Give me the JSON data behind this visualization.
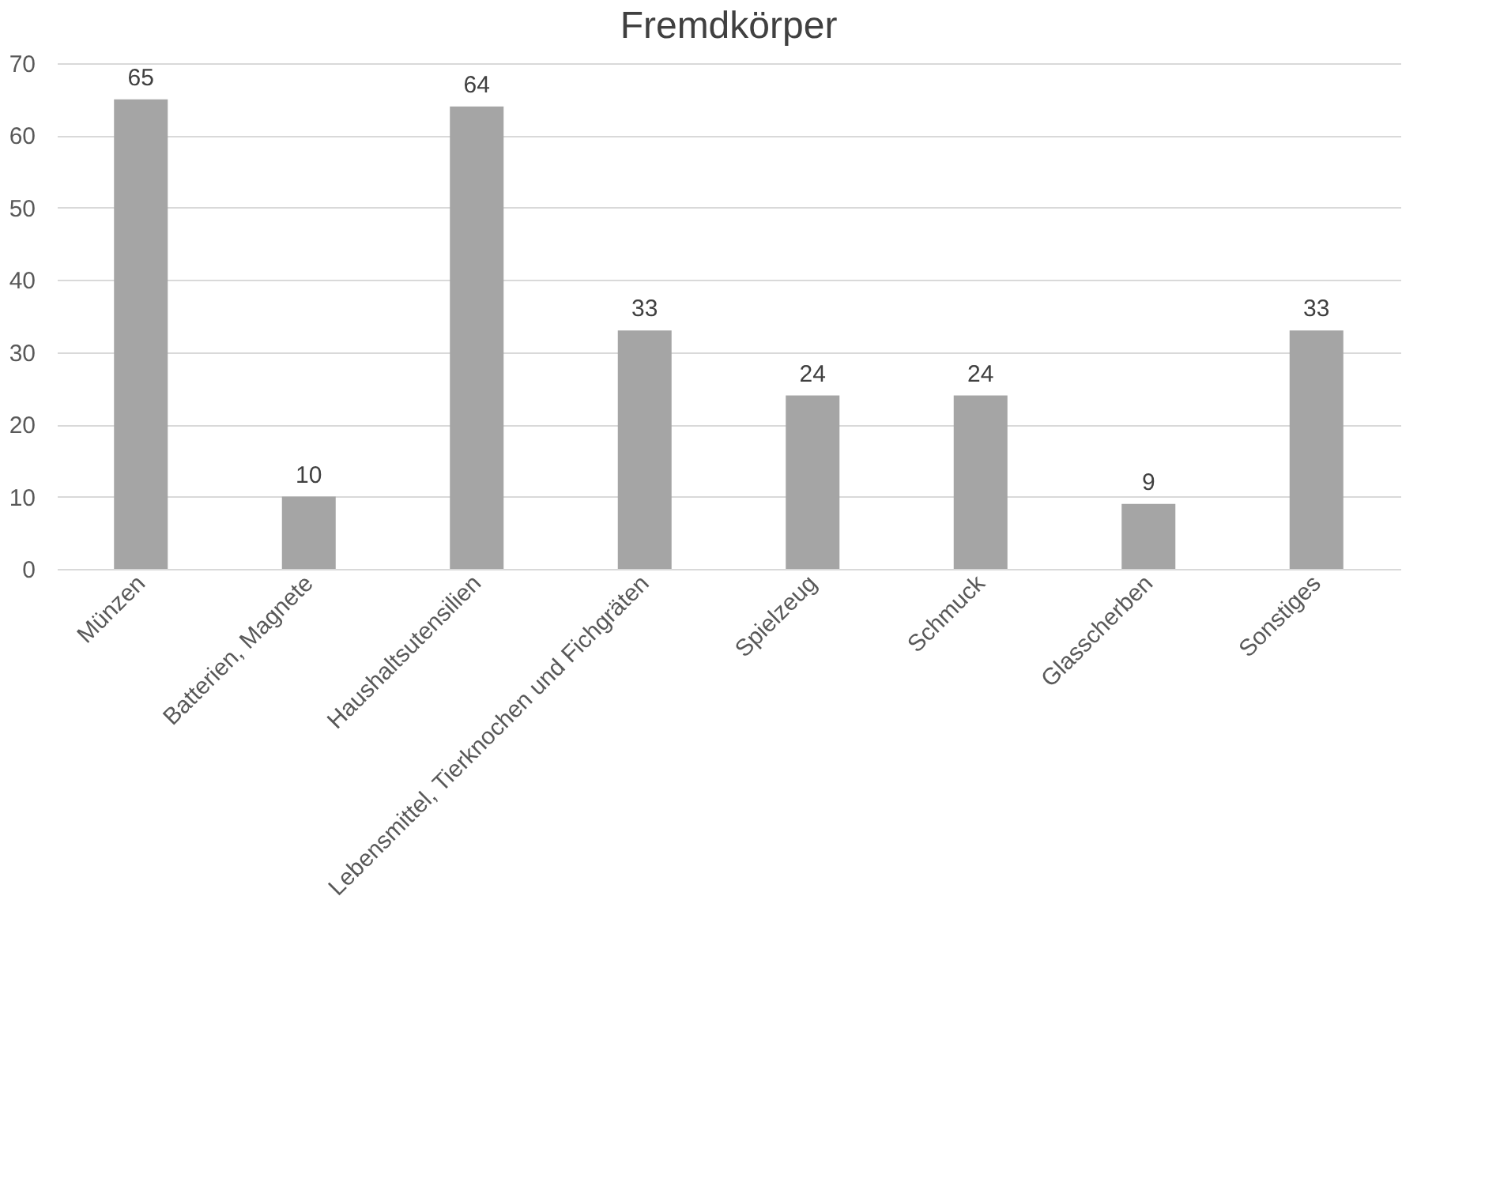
{
  "chart_data": {
    "type": "bar",
    "title": "Fremdkörper",
    "categories": [
      "Münzen",
      "Batterien, Magnete",
      "Haushaltsutensilien",
      "Lebensmittel, Tierknochen und Fichgräten",
      "Spielzeug",
      "Schmuck",
      "Glasscherben",
      "Sonstiges"
    ],
    "values": [
      65,
      10,
      64,
      33,
      24,
      24,
      9,
      33
    ],
    "color": "#a5a5a5",
    "ylim": [
      0,
      70
    ],
    "yticks": [
      0,
      10,
      20,
      30,
      40,
      50,
      60,
      70
    ],
    "grid": "y",
    "data_labels": true
  }
}
